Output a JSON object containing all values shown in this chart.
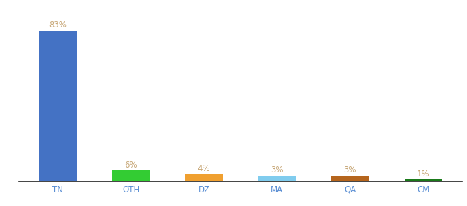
{
  "categories": [
    "TN",
    "OTH",
    "DZ",
    "MA",
    "QA",
    "CM"
  ],
  "values": [
    83,
    6,
    4,
    3,
    3,
    1
  ],
  "bar_colors": [
    "#4472c4",
    "#33cc33",
    "#f0a030",
    "#80ccee",
    "#b5651d",
    "#1a7a1a"
  ],
  "labels": [
    "83%",
    "6%",
    "4%",
    "3%",
    "3%",
    "1%"
  ],
  "label_color": "#c8a878",
  "ylim": [
    0,
    92
  ],
  "background_color": "#ffffff",
  "label_fontsize": 8.5,
  "tick_fontsize": 8.5,
  "tick_color": "#5b8fd4",
  "bar_width": 0.52,
  "show_title": false
}
